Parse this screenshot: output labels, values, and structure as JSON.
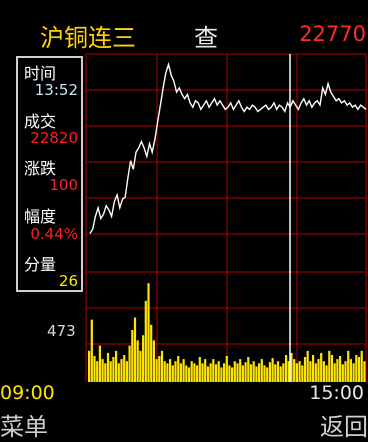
{
  "header": {
    "title": "沪铜连三",
    "query_label": "查",
    "price": "22770"
  },
  "info_panel": {
    "time_label": "时间",
    "time_value": "13:52",
    "deal_label": "成交",
    "deal_value": "22820",
    "change_label": "涨跌",
    "change_value": "100",
    "pct_label": "幅度",
    "pct_value": "0.44%",
    "vol_label": "分量",
    "vol_value": "26"
  },
  "volume_axis": {
    "max_label": "473"
  },
  "time_axis": {
    "start": "09:00",
    "end": "15:00"
  },
  "softkeys": {
    "left": "菜单",
    "right": "返回"
  },
  "colors": {
    "grid": "#b40000",
    "price_line": "#ffffff",
    "volume": "#ffe600",
    "title": "#ffd400",
    "up": "#ff2a2a"
  },
  "chart_data": {
    "type": "line",
    "price_series": [
      0.18,
      0.2,
      0.26,
      0.3,
      0.25,
      0.27,
      0.31,
      0.29,
      0.26,
      0.33,
      0.36,
      0.3,
      0.34,
      0.35,
      0.44,
      0.52,
      0.48,
      0.56,
      0.58,
      0.61,
      0.58,
      0.54,
      0.6,
      0.56,
      0.62,
      0.7,
      0.78,
      0.86,
      0.93,
      0.97,
      0.92,
      0.89,
      0.84,
      0.86,
      0.83,
      0.81,
      0.83,
      0.79,
      0.77,
      0.8,
      0.79,
      0.76,
      0.78,
      0.8,
      0.77,
      0.79,
      0.81,
      0.78,
      0.8,
      0.78,
      0.76,
      0.77,
      0.79,
      0.76,
      0.78,
      0.8,
      0.77,
      0.75,
      0.77,
      0.76,
      0.78,
      0.77,
      0.75,
      0.76,
      0.77,
      0.78,
      0.76,
      0.77,
      0.79,
      0.76,
      0.78,
      0.77,
      0.75,
      0.79,
      0.77,
      0.8,
      0.78,
      0.76,
      0.79,
      0.81,
      0.78,
      0.8,
      0.77,
      0.79,
      0.8,
      0.78,
      0.86,
      0.83,
      0.88,
      0.84,
      0.82,
      0.8,
      0.81,
      0.79,
      0.8,
      0.78,
      0.79,
      0.77,
      0.78,
      0.76,
      0.78,
      0.77,
      0.76
    ],
    "volume_series": [
      0.3,
      0.6,
      0.25,
      0.2,
      0.35,
      0.22,
      0.18,
      0.28,
      0.2,
      0.24,
      0.3,
      0.18,
      0.22,
      0.26,
      0.2,
      0.35,
      0.5,
      0.62,
      0.4,
      0.3,
      0.45,
      0.78,
      0.95,
      0.55,
      0.4,
      0.22,
      0.25,
      0.3,
      0.2,
      0.18,
      0.22,
      0.16,
      0.2,
      0.25,
      0.18,
      0.22,
      0.16,
      0.14,
      0.2,
      0.18,
      0.16,
      0.24,
      0.18,
      0.22,
      0.15,
      0.18,
      0.22,
      0.17,
      0.2,
      0.14,
      0.18,
      0.25,
      0.16,
      0.14,
      0.2,
      0.18,
      0.22,
      0.16,
      0.19,
      0.24,
      0.17,
      0.2,
      0.15,
      0.18,
      0.22,
      0.16,
      0.14,
      0.19,
      0.23,
      0.17,
      0.2,
      0.15,
      0.18,
      0.26,
      0.2,
      0.28,
      0.22,
      0.18,
      0.2,
      0.16,
      0.24,
      0.3,
      0.2,
      0.26,
      0.18,
      0.22,
      0.28,
      0.2,
      0.16,
      0.3,
      0.26,
      0.18,
      0.22,
      0.25,
      0.17,
      0.2,
      0.3,
      0.22,
      0.18,
      0.26,
      0.24,
      0.3,
      0.2
    ]
  }
}
